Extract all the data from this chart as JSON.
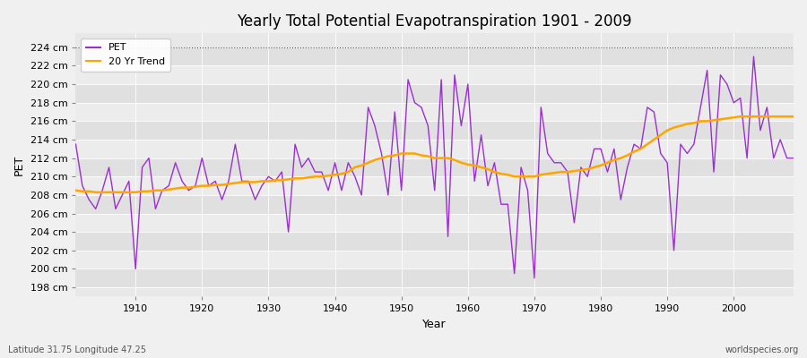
{
  "title": "Yearly Total Potential Evapotranspiration 1901 - 2009",
  "xlabel": "Year",
  "ylabel": "PET",
  "bottom_left_label": "Latitude 31.75 Longitude 47.25",
  "bottom_right_label": "worldspecies.org",
  "pet_color": "#9932CC",
  "trend_color": "#FFA500",
  "bg_color": "#f0f0f0",
  "plot_bg_color": "#e8e8e8",
  "band_color1": "#e0e0e0",
  "band_color2": "#ececec",
  "ylim": [
    197,
    225.5
  ],
  "yticks": [
    198,
    200,
    202,
    204,
    206,
    208,
    210,
    212,
    214,
    216,
    218,
    220,
    222,
    224
  ],
  "years": [
    1901,
    1902,
    1903,
    1904,
    1905,
    1906,
    1907,
    1908,
    1909,
    1910,
    1911,
    1912,
    1913,
    1914,
    1915,
    1916,
    1917,
    1918,
    1919,
    1920,
    1921,
    1922,
    1923,
    1924,
    1925,
    1926,
    1927,
    1928,
    1929,
    1930,
    1931,
    1932,
    1933,
    1934,
    1935,
    1936,
    1937,
    1938,
    1939,
    1940,
    1941,
    1942,
    1943,
    1944,
    1945,
    1946,
    1947,
    1948,
    1949,
    1950,
    1951,
    1952,
    1953,
    1954,
    1955,
    1956,
    1957,
    1958,
    1959,
    1960,
    1961,
    1962,
    1963,
    1964,
    1965,
    1966,
    1967,
    1968,
    1969,
    1970,
    1971,
    1972,
    1973,
    1974,
    1975,
    1976,
    1977,
    1978,
    1979,
    1980,
    1981,
    1982,
    1983,
    1984,
    1985,
    1986,
    1987,
    1988,
    1989,
    1990,
    1991,
    1992,
    1993,
    1994,
    1995,
    1996,
    1997,
    1998,
    1999,
    2000,
    2001,
    2002,
    2003,
    2004,
    2005,
    2006,
    2007,
    2008,
    2009
  ],
  "pet_values": [
    213.5,
    209.0,
    207.5,
    206.5,
    208.5,
    211.0,
    206.5,
    208.0,
    209.5,
    200.0,
    211.0,
    212.0,
    206.5,
    208.5,
    209.0,
    211.5,
    209.5,
    208.5,
    209.0,
    212.0,
    209.0,
    209.5,
    207.5,
    209.5,
    213.5,
    209.5,
    209.5,
    207.5,
    209.0,
    210.0,
    209.5,
    210.5,
    204.0,
    213.5,
    211.0,
    212.0,
    210.5,
    210.5,
    208.5,
    211.5,
    208.5,
    211.5,
    210.0,
    208.0,
    217.5,
    215.5,
    212.5,
    208.0,
    217.0,
    208.5,
    220.5,
    218.0,
    217.5,
    215.5,
    208.5,
    220.5,
    203.5,
    221.0,
    215.5,
    220.0,
    209.5,
    214.5,
    209.0,
    211.5,
    207.0,
    207.0,
    199.5,
    211.0,
    208.5,
    199.0,
    217.5,
    212.5,
    211.5,
    211.5,
    210.5,
    205.0,
    211.0,
    210.0,
    213.0,
    213.0,
    210.5,
    213.0,
    207.5,
    211.0,
    213.5,
    213.0,
    217.5,
    217.0,
    212.5,
    211.5,
    202.0,
    213.5,
    212.5,
    213.5,
    217.5,
    221.5,
    210.5,
    221.0,
    220.0,
    218.0,
    218.5,
    212.0,
    223.0,
    215.0,
    217.5,
    212.0,
    214.0,
    212.0,
    212.0
  ],
  "trend_values": [
    208.5,
    208.4,
    208.4,
    208.3,
    208.3,
    208.3,
    208.3,
    208.3,
    208.3,
    208.3,
    208.4,
    208.4,
    208.5,
    208.5,
    208.6,
    208.7,
    208.8,
    208.8,
    208.9,
    209.0,
    209.0,
    209.1,
    209.1,
    209.2,
    209.3,
    209.4,
    209.4,
    209.4,
    209.5,
    209.5,
    209.6,
    209.6,
    209.7,
    209.8,
    209.8,
    209.9,
    210.0,
    210.0,
    210.1,
    210.2,
    210.3,
    210.5,
    211.0,
    211.2,
    211.5,
    211.8,
    212.0,
    212.2,
    212.3,
    212.5,
    212.5,
    212.5,
    212.3,
    212.2,
    212.0,
    212.0,
    212.0,
    211.8,
    211.5,
    211.3,
    211.2,
    211.0,
    210.8,
    210.5,
    210.3,
    210.2,
    210.0,
    210.0,
    210.0,
    210.0,
    210.2,
    210.3,
    210.4,
    210.5,
    210.5,
    210.6,
    210.7,
    210.8,
    211.0,
    211.2,
    211.5,
    211.8,
    212.0,
    212.3,
    212.7,
    213.0,
    213.5,
    214.0,
    214.5,
    215.0,
    215.3,
    215.5,
    215.7,
    215.8,
    216.0,
    216.0,
    216.1,
    216.2,
    216.3,
    216.4,
    216.5,
    216.5,
    216.5,
    216.5,
    216.5,
    216.5,
    216.5,
    216.5,
    216.5
  ]
}
